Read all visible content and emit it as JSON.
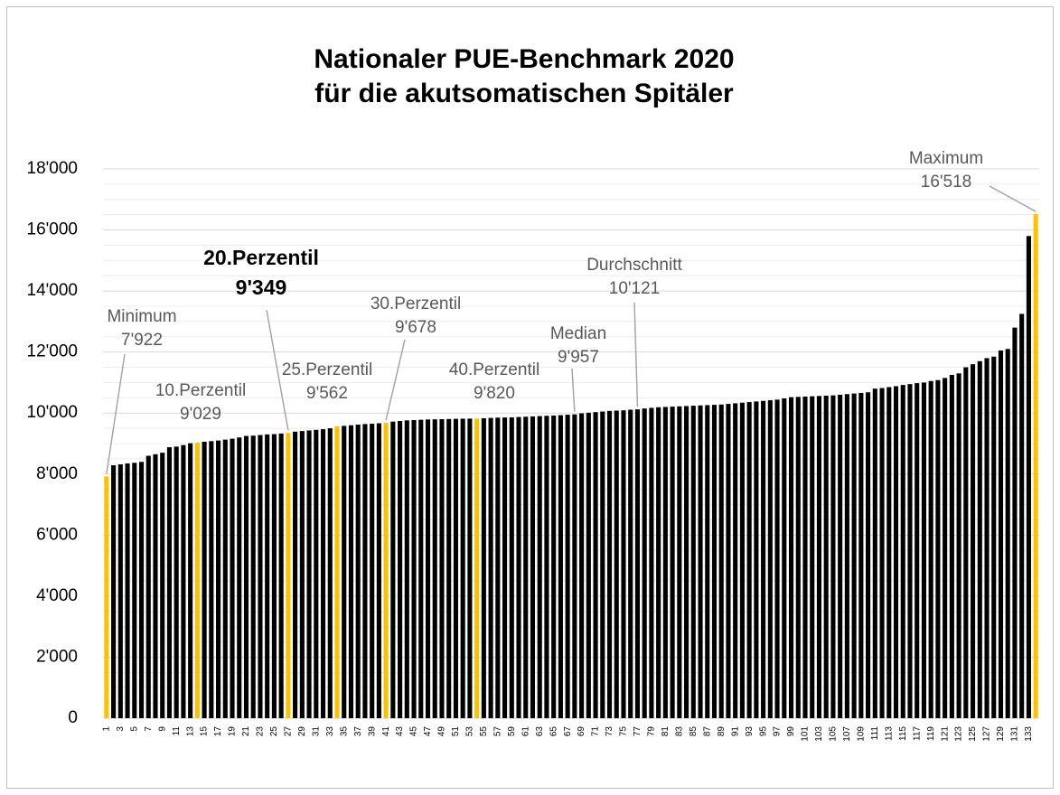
{
  "chart_data": {
    "type": "bar",
    "title": [
      "Nationaler PUE-Benchmark 2020",
      "für die akutsomatischen Spitäler"
    ],
    "categories": [
      "1",
      null,
      "3",
      null,
      "5",
      null,
      "7",
      null,
      "9",
      null,
      "11",
      null,
      "13",
      null,
      "15",
      null,
      "17",
      null,
      "19",
      null,
      "21",
      null,
      "23",
      null,
      "25",
      null,
      "27",
      null,
      "29",
      null,
      "31",
      null,
      "33",
      null,
      "35",
      null,
      "37",
      null,
      "39",
      null,
      "41",
      null,
      "43",
      null,
      "45",
      null,
      "47",
      null,
      "49",
      null,
      "51",
      null,
      "53",
      null,
      "55",
      null,
      "57",
      null,
      "59",
      null,
      "61",
      null,
      "63",
      null,
      "65",
      null,
      "67",
      null,
      "69",
      null,
      "71",
      null,
      "73",
      null,
      "75",
      null,
      "77",
      null,
      "79",
      null,
      "81",
      null,
      "83",
      null,
      "85",
      null,
      "87",
      null,
      "89",
      null,
      "91",
      null,
      "93",
      null,
      "95",
      null,
      "97",
      null,
      "99",
      null,
      "101",
      null,
      "103",
      null,
      "105",
      null,
      "107",
      null,
      "109",
      null,
      "111",
      null,
      "113",
      null,
      "115",
      null,
      "117",
      null,
      "119",
      null,
      "121",
      null,
      "123",
      null,
      "125",
      null,
      "127",
      null,
      "129",
      null,
      "131",
      null,
      "133",
      null
    ],
    "values": [
      7922,
      8290,
      8320,
      8350,
      8370,
      8400,
      8600,
      8650,
      8700,
      8880,
      8900,
      8950,
      9010,
      9029,
      9060,
      9080,
      9100,
      9130,
      9160,
      9200,
      9250,
      9260,
      9280,
      9300,
      9310,
      9330,
      9349,
      9390,
      9410,
      9430,
      9450,
      9470,
      9500,
      9562,
      9580,
      9600,
      9620,
      9640,
      9650,
      9665,
      9678,
      9720,
      9740,
      9760,
      9770,
      9780,
      9790,
      9795,
      9800,
      9805,
      9810,
      9815,
      9818,
      9820,
      9830,
      9840,
      9850,
      9855,
      9860,
      9870,
      9880,
      9890,
      9900,
      9910,
      9920,
      9930,
      9945,
      9957,
      9990,
      10010,
      10030,
      10050,
      10070,
      10080,
      10090,
      10110,
      10121,
      10150,
      10170,
      10190,
      10200,
      10210,
      10220,
      10230,
      10240,
      10250,
      10260,
      10270,
      10280,
      10300,
      10320,
      10340,
      10360,
      10380,
      10400,
      10420,
      10440,
      10480,
      10520,
      10530,
      10540,
      10550,
      10560,
      10570,
      10580,
      10600,
      10620,
      10640,
      10660,
      10680,
      10800,
      10820,
      10850,
      10880,
      10920,
      10950,
      10980,
      11000,
      11050,
      11080,
      11150,
      11250,
      11300,
      11500,
      11600,
      11700,
      11800,
      11850,
      12050,
      12100,
      12800,
      13250,
      15800,
      16518
    ],
    "color": "#000000",
    "highlight_color": "#ffc000",
    "ylim": [
      0,
      18000
    ],
    "yticks": [
      0,
      {
        "value": 2000,
        "label": "2'000"
      },
      {
        "value": 4000,
        "label": "4'000"
      },
      {
        "value": 6000,
        "label": "6'000"
      },
      {
        "value": 8000,
        "label": "8'000"
      },
      {
        "value": 10000,
        "label": "10'000"
      },
      {
        "value": 12000,
        "label": "12'000"
      },
      {
        "value": 14000,
        "label": "14'000"
      },
      {
        "value": 16000,
        "label": "16'000"
      },
      {
        "value": 18000,
        "label": "18'000"
      }
    ],
    "minor_yticks": [
      500,
      1000,
      1500,
      2500,
      3000,
      3500,
      4500,
      5000,
      5500,
      6500,
      7000,
      7500,
      8500,
      9000,
      9500,
      10500,
      11000,
      11500,
      12500,
      13000,
      13500,
      14500,
      15000,
      15500,
      16500,
      17000,
      17500
    ],
    "grid": true,
    "annotations": [
      {
        "label": "Minimum",
        "x": 1,
        "value": 7922,
        "value_label": "7'922",
        "highlight": true
      },
      {
        "label": "10.Perzentil",
        "x": 14,
        "value": 9029,
        "value_label": "9'029",
        "highlight": true
      },
      {
        "label": "20.Perzentil",
        "x": 27,
        "value": 9349,
        "value_label": "9'349",
        "highlight": true,
        "bold": true
      },
      {
        "label": "25.Perzentil",
        "x": 34,
        "value": 9562,
        "value_label": "9'562",
        "highlight": true
      },
      {
        "label": "30.Perzentil",
        "x": 41,
        "value": 9678,
        "value_label": "9'678",
        "highlight": true
      },
      {
        "label": "40.Perzentil",
        "x": 54,
        "value": 9820,
        "value_label": "9'820",
        "highlight": true
      },
      {
        "label": "Median",
        "x": 68,
        "value": 9957,
        "value_label": "9'957",
        "highlight": false
      },
      {
        "label": "Durchschnitt",
        "x": 77,
        "value": 10121,
        "value_label": "10'121",
        "highlight": false
      },
      {
        "label": "Maximum",
        "x": 134,
        "value": 16518,
        "value_label": "16'518",
        "highlight": true
      }
    ]
  }
}
